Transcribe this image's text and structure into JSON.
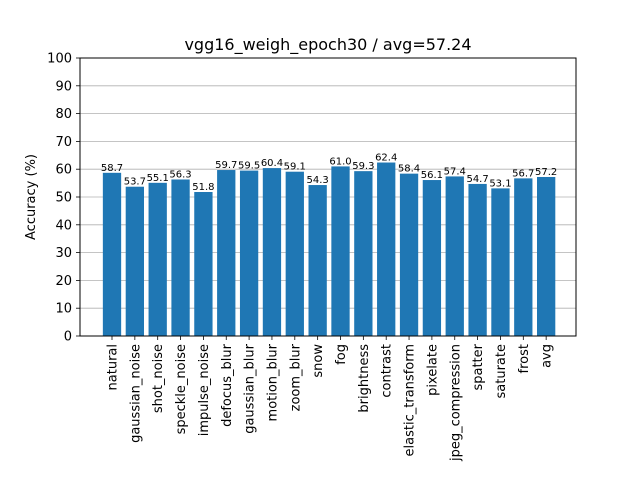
{
  "chart_data": {
    "type": "bar",
    "title": "vgg16_weigh_epoch30 / avg=57.24",
    "xlabel": "",
    "ylabel": "Accuracy (%)",
    "ylim": [
      0,
      100
    ],
    "yticks": [
      0,
      10,
      20,
      30,
      40,
      50,
      60,
      70,
      80,
      90,
      100
    ],
    "grid": "y",
    "legend": "none",
    "bar_color": "#1f77b4",
    "categories": [
      "natural",
      "gaussian_noise",
      "shot_noise",
      "speckle_noise",
      "impulse_noise",
      "defocus_blur",
      "gaussian_blur",
      "motion_blur",
      "zoom_blur",
      "snow",
      "fog",
      "brightness",
      "contrast",
      "elastic_transform",
      "pixelate",
      "jpeg_compression",
      "spatter",
      "saturate",
      "frost",
      "avg"
    ],
    "values": [
      58.7,
      53.7,
      55.1,
      56.3,
      51.8,
      59.7,
      59.5,
      60.4,
      59.1,
      54.3,
      61.0,
      59.3,
      62.4,
      58.4,
      56.1,
      57.4,
      54.7,
      53.1,
      56.7,
      57.2
    ],
    "data_labels": [
      "58.7",
      "53.7",
      "55.1",
      "56.3",
      "51.8",
      "59.7",
      "59.5",
      "60.4",
      "59.1",
      "54.3",
      "61.0",
      "59.3",
      "62.4",
      "58.4",
      "56.1",
      "57.4",
      "54.7",
      "53.1",
      "56.7",
      "57.2"
    ]
  }
}
